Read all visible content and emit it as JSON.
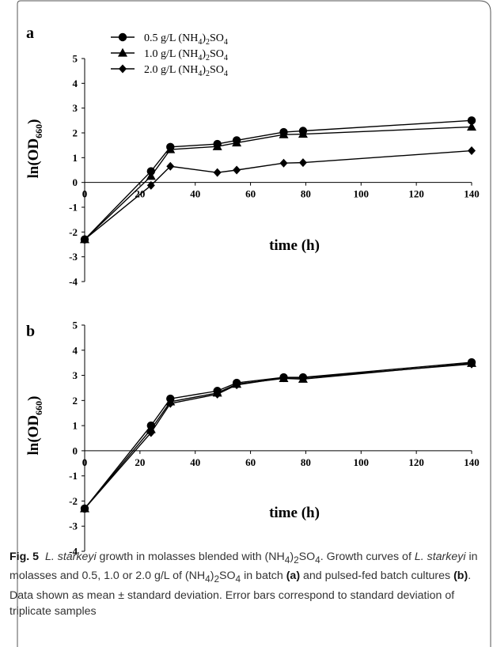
{
  "chart_data": [
    {
      "type": "line",
      "panel": "a",
      "xlabel": "time (h)",
      "ylabel": "ln(OD660)",
      "ylabel_main": "ln(OD",
      "ylabel_sub": "660",
      "ylabel_end": ")",
      "xlim": [
        0,
        140
      ],
      "ylim": [
        -4,
        5
      ],
      "xticks": [
        "0",
        "20",
        "40",
        "60",
        "80",
        "100",
        "120",
        "140"
      ],
      "yticks": [
        "-4",
        "-3",
        "-2",
        "-1",
        "0",
        "1",
        "2",
        "3",
        "4",
        "5"
      ],
      "grid": false,
      "legend_position": "top-left",
      "series": [
        {
          "name": "0.5 g/L (NH4)2SO4",
          "label_pre": "0.5 g/L (NH",
          "label_mid": ")",
          "label_end": "SO",
          "marker": "circle",
          "x": [
            0,
            24,
            31,
            48,
            55,
            72,
            79,
            140
          ],
          "y": [
            -2.3,
            0.45,
            1.43,
            1.55,
            1.7,
            2.03,
            2.08,
            2.5
          ]
        },
        {
          "name": "1.0 g/L (NH4)2SO4",
          "label_pre": "1.0 g/L (NH",
          "label_mid": ")",
          "label_end": "SO",
          "marker": "triangle",
          "x": [
            0,
            24,
            31,
            48,
            55,
            72,
            79,
            140
          ],
          "y": [
            -2.3,
            0.25,
            1.33,
            1.45,
            1.6,
            1.93,
            1.95,
            2.24
          ]
        },
        {
          "name": "2.0 g/L (NH4)2SO4",
          "label_pre": "2.0 g/L (NH",
          "label_mid": ")",
          "label_end": "SO",
          "marker": "diamond",
          "x": [
            0,
            24,
            31,
            48,
            55,
            72,
            79,
            140
          ],
          "y": [
            -2.3,
            -0.12,
            0.65,
            0.4,
            0.5,
            0.78,
            0.8,
            1.28
          ]
        }
      ]
    },
    {
      "type": "line",
      "panel": "b",
      "xlabel": "time (h)",
      "ylabel": "ln(OD660)",
      "ylabel_main": "ln(OD",
      "ylabel_sub": "660",
      "ylabel_end": ")",
      "xlim": [
        0,
        140
      ],
      "ylim": [
        -4,
        5
      ],
      "xticks": [
        "0",
        "20",
        "40",
        "60",
        "80",
        "100",
        "120",
        "140"
      ],
      "yticks": [
        "-4",
        "-3",
        "-2",
        "-1",
        "0",
        "1",
        "2",
        "3",
        "4",
        "5"
      ],
      "grid": false,
      "series": [
        {
          "name": "0.5 g/L (NH4)2SO4",
          "marker": "circle",
          "x": [
            0,
            24,
            31,
            48,
            55,
            72,
            79,
            140
          ],
          "y": [
            -2.3,
            1.0,
            2.07,
            2.38,
            2.7,
            2.92,
            2.92,
            3.52
          ]
        },
        {
          "name": "1.0 g/L (NH4)2SO4",
          "marker": "triangle",
          "x": [
            0,
            24,
            31,
            48,
            55,
            72,
            79,
            140
          ],
          "y": [
            -2.3,
            0.85,
            1.95,
            2.3,
            2.65,
            2.88,
            2.85,
            3.48
          ]
        },
        {
          "name": "2.0 g/L (NH4)2SO4",
          "marker": "diamond",
          "x": [
            0,
            24,
            31,
            48,
            55,
            72,
            79,
            140
          ],
          "y": [
            -2.3,
            0.72,
            1.88,
            2.25,
            2.62,
            2.9,
            2.9,
            3.45
          ]
        }
      ]
    }
  ],
  "caption": {
    "fig_label": "Fig. 5",
    "title_species": "L. starkeyi",
    "title_rest": " growth in molasses blended with (NH",
    "body_1": "Growth curves of ",
    "body_species": "L. starkeyi",
    "body_2": " in molasses and 0.5, 1.0 or 2.0 g/L of (NH",
    "body_3": "SO",
    "body_4": " in batch ",
    "label_a": "(a)",
    "body_5": " and pulsed-fed batch cultures ",
    "label_b": "(b)",
    "body_6": ". Data shown as mean ± standard deviation. Error bars correspond to standard deviation of triplicate samples",
    "sub_4": "4",
    "sub_2": "2",
    "so_text": "SO"
  }
}
